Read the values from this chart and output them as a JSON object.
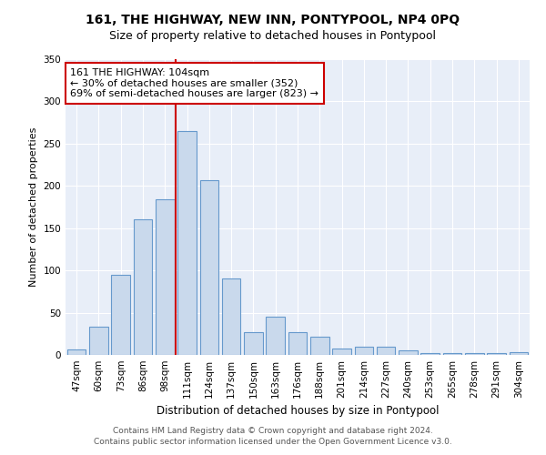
{
  "title": "161, THE HIGHWAY, NEW INN, PONTYPOOL, NP4 0PQ",
  "subtitle": "Size of property relative to detached houses in Pontypool",
  "xlabel": "Distribution of detached houses by size in Pontypool",
  "ylabel": "Number of detached properties",
  "categories": [
    "47sqm",
    "60sqm",
    "73sqm",
    "86sqm",
    "98sqm",
    "111sqm",
    "124sqm",
    "137sqm",
    "150sqm",
    "163sqm",
    "176sqm",
    "188sqm",
    "201sqm",
    "214sqm",
    "227sqm",
    "240sqm",
    "253sqm",
    "265sqm",
    "278sqm",
    "291sqm",
    "304sqm"
  ],
  "values": [
    7,
    33,
    95,
    160,
    184,
    265,
    207,
    90,
    27,
    45,
    27,
    22,
    8,
    10,
    10,
    5,
    2,
    2,
    2,
    2,
    3
  ],
  "bar_color": "#c9d9ec",
  "bar_edge_color": "#6699cc",
  "vline_color": "#cc0000",
  "annotation_text": "161 THE HIGHWAY: 104sqm\n← 30% of detached houses are smaller (352)\n69% of semi-detached houses are larger (823) →",
  "annotation_box_color": "#ffffff",
  "annotation_box_edge_color": "#cc0000",
  "ylim": [
    0,
    350
  ],
  "yticks": [
    0,
    50,
    100,
    150,
    200,
    250,
    300,
    350
  ],
  "background_color": "#e8eef8",
  "footer_line1": "Contains HM Land Registry data © Crown copyright and database right 2024.",
  "footer_line2": "Contains public sector information licensed under the Open Government Licence v3.0.",
  "title_fontsize": 10,
  "subtitle_fontsize": 9,
  "xlabel_fontsize": 8.5,
  "ylabel_fontsize": 8,
  "tick_fontsize": 7.5,
  "annotation_fontsize": 8,
  "footer_fontsize": 6.5
}
